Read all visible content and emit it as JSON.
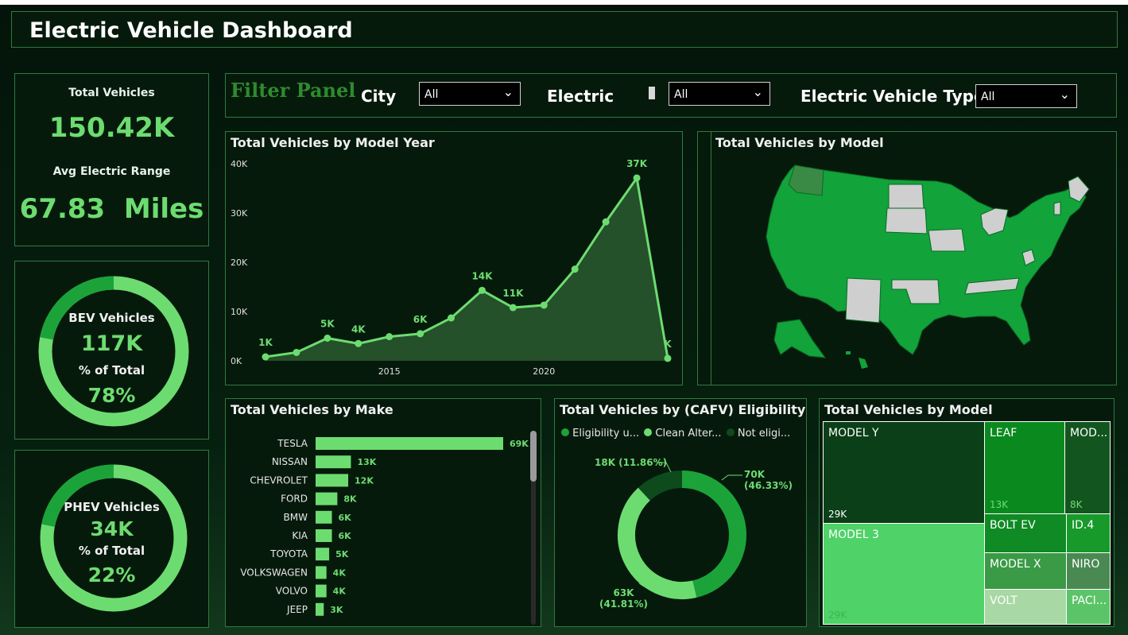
{
  "header": {
    "title": "Electric Vehicle Dashboard"
  },
  "kpi": {
    "total_label": "Total Vehicles",
    "total_value": "150.42K",
    "range_label": "Avg Electric Range",
    "range_value": "67.83  Miles"
  },
  "bev": {
    "label": "BEV Vehicles",
    "value": "117K",
    "pct_label": "% of Total",
    "pct": "78%",
    "share": 0.78
  },
  "phev": {
    "label": "PHEV Vehicles",
    "value": "34K",
    "pct_label": "% of Total",
    "pct": "22%",
    "share": 0.22
  },
  "filters": {
    "title": "Filter Panel",
    "city_label": "City",
    "city_value": "All",
    "electric_label": "Electric",
    "electric_value": "All",
    "type_label": "Electric Vehicle Type",
    "type_value": "All",
    "chevron": "chevron-down-icon"
  },
  "year_chart": {
    "title": "Total Vehicles by Model Year",
    "y_ticks": [
      "0K",
      "10K",
      "20K",
      "30K",
      "40K"
    ],
    "x_ticks": [
      "2015",
      "2020"
    ]
  },
  "map": {
    "title": "Total Vehicles by Model"
  },
  "make_chart": {
    "title": "Total Vehicles by Make"
  },
  "cafv": {
    "title": "Total Vehicles by (CAFV) Eligibility",
    "legend": [
      "Eligibility u...",
      "Clean Alter...",
      "Not eligi..."
    ],
    "labels": [
      {
        "value": "70K",
        "pct": "(46.33%)"
      },
      {
        "value": "63K",
        "pct": "(41.81%)"
      },
      {
        "value": "18K (11.86%)"
      }
    ]
  },
  "treemap": {
    "title": "Total Vehicles by Model",
    "items": [
      {
        "name": "MODEL Y",
        "value": "29K"
      },
      {
        "name": "LEAF",
        "value": "13K"
      },
      {
        "name": "MOD...",
        "value": "8K"
      },
      {
        "name": "MODEL 3",
        "value": "29K"
      },
      {
        "name": "BOLT EV",
        "value": ""
      },
      {
        "name": "ID.4",
        "value": ""
      },
      {
        "name": "MODEL X",
        "value": ""
      },
      {
        "name": "NIRO",
        "value": ""
      },
      {
        "name": "VOLT",
        "value": ""
      },
      {
        "name": "PACI...",
        "value": ""
      }
    ]
  },
  "colors": {
    "accent": "#6ddc70",
    "mid": "#1ba33a",
    "dark": "#0a3f17",
    "border": "#2f7a3e"
  },
  "chart_data": [
    {
      "type": "area",
      "title": "Total Vehicles by Model Year",
      "x": [
        2011,
        2012,
        2013,
        2014,
        2015,
        2016,
        2017,
        2018,
        2019,
        2020,
        2021,
        2022,
        2023,
        2024
      ],
      "values": [
        0.8,
        1.7,
        4.6,
        3.5,
        4.9,
        5.5,
        8.7,
        14.3,
        10.8,
        11.3,
        18.6,
        28.2,
        37.1,
        0.5
      ],
      "data_labels": [
        "1K",
        "",
        "5K",
        "4K",
        "",
        "6K",
        "",
        "14K",
        "11K",
        "",
        "",
        "",
        "37K",
        "K"
      ],
      "ylim": [
        0,
        40
      ],
      "x_ticks": [
        2015,
        2020
      ]
    },
    {
      "type": "bar",
      "orientation": "horizontal",
      "title": "Total Vehicles by Make",
      "categories": [
        "TESLA",
        "NISSAN",
        "CHEVROLET",
        "FORD",
        "BMW",
        "KIA",
        "TOYOTA",
        "VOLKSWAGEN",
        "VOLVO",
        "JEEP"
      ],
      "values": [
        69,
        13,
        12,
        8,
        6,
        6,
        5,
        4,
        4,
        3
      ],
      "labels": [
        "69K",
        "13K",
        "12K",
        "8K",
        "6K",
        "6K",
        "5K",
        "4K",
        "4K",
        "3K"
      ]
    },
    {
      "type": "pie",
      "title": "Total Vehicles by (CAFV) Eligibility",
      "categories": [
        "Eligibility u...",
        "Clean Alter...",
        "Not eligi..."
      ],
      "values": [
        70,
        63,
        18
      ],
      "percent": [
        46.33,
        41.81,
        11.86
      ]
    }
  ]
}
